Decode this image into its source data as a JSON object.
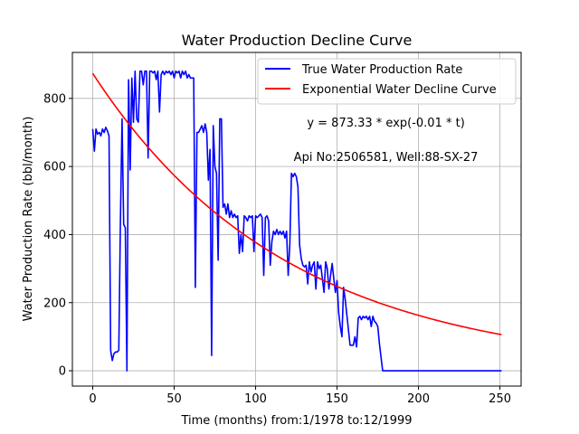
{
  "chart_data": {
    "type": "line",
    "title": "Water Production Decline Curve",
    "xlabel": "Time (months) from:1/1978 to:12/1999",
    "ylabel": "Water Production Rate (bbl/month)",
    "xlim": [
      -12.5,
      263
    ],
    "ylim": [
      -45,
      935
    ],
    "xticks": [
      0,
      50,
      100,
      150,
      200,
      250
    ],
    "yticks": [
      0,
      200,
      400,
      600,
      800
    ],
    "grid": true,
    "legend_position": "top-right",
    "annotations": [
      {
        "text": "y = 873.33 * exp(-0.01 * t)",
        "x": 180,
        "y": 730
      },
      {
        "text": "Api No:2506581, Well:88-SX-27",
        "x": 180,
        "y": 630
      }
    ],
    "series": [
      {
        "name": "True Water Production Rate",
        "color": "#0000ff",
        "kind": "line",
        "points": [
          [
            0,
            710
          ],
          [
            1,
            645
          ],
          [
            2,
            710
          ],
          [
            3,
            695
          ],
          [
            4,
            700
          ],
          [
            5,
            690
          ],
          [
            6,
            710
          ],
          [
            7,
            700
          ],
          [
            8,
            715
          ],
          [
            9,
            705
          ],
          [
            10,
            690
          ],
          [
            11,
            60
          ],
          [
            12,
            30
          ],
          [
            13,
            50
          ],
          [
            14,
            55
          ],
          [
            15,
            55
          ],
          [
            16,
            60
          ],
          [
            17,
            440
          ],
          [
            18,
            740
          ],
          [
            19,
            430
          ],
          [
            20,
            420
          ],
          [
            21,
            0
          ],
          [
            22,
            855
          ],
          [
            23,
            590
          ],
          [
            24,
            860
          ],
          [
            25,
            730
          ],
          [
            26,
            880
          ],
          [
            27,
            740
          ],
          [
            28,
            730
          ],
          [
            29,
            880
          ],
          [
            30,
            880
          ],
          [
            31,
            840
          ],
          [
            32,
            880
          ],
          [
            33,
            880
          ],
          [
            34,
            625
          ],
          [
            35,
            880
          ],
          [
            36,
            880
          ],
          [
            37,
            875
          ],
          [
            38,
            880
          ],
          [
            39,
            855
          ],
          [
            40,
            880
          ],
          [
            41,
            760
          ],
          [
            42,
            870
          ],
          [
            43,
            880
          ],
          [
            44,
            870
          ],
          [
            45,
            880
          ],
          [
            46,
            875
          ],
          [
            47,
            880
          ],
          [
            48,
            870
          ],
          [
            49,
            880
          ],
          [
            50,
            860
          ],
          [
            51,
            880
          ],
          [
            52,
            875
          ],
          [
            53,
            880
          ],
          [
            54,
            860
          ],
          [
            55,
            880
          ],
          [
            56,
            870
          ],
          [
            57,
            880
          ],
          [
            58,
            860
          ],
          [
            59,
            870
          ],
          [
            60,
            860
          ],
          [
            61,
            860
          ],
          [
            62,
            860
          ],
          [
            63,
            245
          ],
          [
            64,
            700
          ],
          [
            65,
            700
          ],
          [
            66,
            710
          ],
          [
            67,
            720
          ],
          [
            68,
            700
          ],
          [
            69,
            725
          ],
          [
            70,
            700
          ],
          [
            71,
            560
          ],
          [
            72,
            650
          ],
          [
            73,
            45
          ],
          [
            74,
            720
          ],
          [
            75,
            600
          ],
          [
            76,
            580
          ],
          [
            77,
            325
          ],
          [
            78,
            740
          ],
          [
            79,
            740
          ],
          [
            80,
            480
          ],
          [
            81,
            490
          ],
          [
            82,
            460
          ],
          [
            83,
            490
          ],
          [
            84,
            450
          ],
          [
            85,
            470
          ],
          [
            86,
            450
          ],
          [
            87,
            460
          ],
          [
            88,
            450
          ],
          [
            89,
            455
          ],
          [
            90,
            345
          ],
          [
            91,
            400
          ],
          [
            92,
            350
          ],
          [
            93,
            455
          ],
          [
            94,
            450
          ],
          [
            95,
            440
          ],
          [
            96,
            455
          ],
          [
            97,
            450
          ],
          [
            98,
            455
          ],
          [
            99,
            350
          ],
          [
            100,
            455
          ],
          [
            101,
            450
          ],
          [
            102,
            455
          ],
          [
            103,
            460
          ],
          [
            104,
            450
          ],
          [
            105,
            280
          ],
          [
            106,
            450
          ],
          [
            107,
            455
          ],
          [
            108,
            440
          ],
          [
            109,
            310
          ],
          [
            110,
            380
          ],
          [
            111,
            410
          ],
          [
            112,
            400
          ],
          [
            113,
            415
          ],
          [
            114,
            400
          ],
          [
            115,
            410
          ],
          [
            116,
            400
          ],
          [
            117,
            410
          ],
          [
            118,
            390
          ],
          [
            119,
            410
          ],
          [
            120,
            280
          ],
          [
            121,
            370
          ],
          [
            122,
            580
          ],
          [
            123,
            570
          ],
          [
            124,
            580
          ],
          [
            125,
            570
          ],
          [
            126,
            540
          ],
          [
            127,
            370
          ],
          [
            128,
            330
          ],
          [
            129,
            310
          ],
          [
            130,
            305
          ],
          [
            131,
            310
          ],
          [
            132,
            255
          ],
          [
            133,
            320
          ],
          [
            134,
            290
          ],
          [
            135,
            310
          ],
          [
            136,
            320
          ],
          [
            137,
            240
          ],
          [
            138,
            320
          ],
          [
            139,
            300
          ],
          [
            140,
            310
          ],
          [
            141,
            270
          ],
          [
            142,
            230
          ],
          [
            143,
            320
          ],
          [
            144,
            300
          ],
          [
            145,
            240
          ],
          [
            146,
            280
          ],
          [
            147,
            315
          ],
          [
            148,
            270
          ],
          [
            149,
            230
          ],
          [
            150,
            265
          ],
          [
            151,
            170
          ],
          [
            152,
            130
          ],
          [
            153,
            100
          ],
          [
            154,
            245
          ],
          [
            155,
            210
          ],
          [
            156,
            165
          ],
          [
            157,
            120
          ],
          [
            158,
            75
          ],
          [
            159,
            75
          ],
          [
            160,
            75
          ],
          [
            161,
            100
          ],
          [
            162,
            70
          ],
          [
            163,
            155
          ],
          [
            164,
            160
          ],
          [
            165,
            150
          ],
          [
            166,
            160
          ],
          [
            167,
            155
          ],
          [
            168,
            160
          ],
          [
            169,
            150
          ],
          [
            170,
            160
          ],
          [
            171,
            130
          ],
          [
            172,
            160
          ],
          [
            173,
            145
          ],
          [
            174,
            140
          ],
          [
            175,
            130
          ],
          [
            176,
            80
          ],
          [
            177,
            40
          ],
          [
            178,
            0
          ],
          [
            200,
            0
          ],
          [
            225,
            0
          ],
          [
            251,
            0
          ]
        ]
      },
      {
        "name": "Exponential Water Decline Curve",
        "color": "#ff0000",
        "kind": "function",
        "a": 873.33,
        "b": 0.0084,
        "x_range": [
          0,
          251
        ]
      }
    ]
  }
}
